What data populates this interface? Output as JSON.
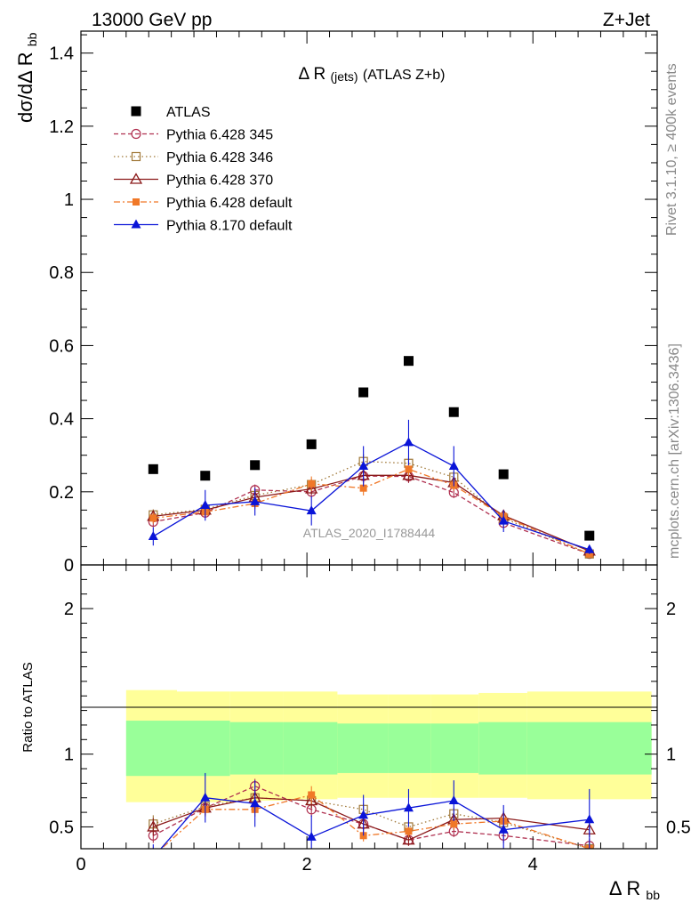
{
  "header": {
    "left": "13000 GeV pp",
    "right": "Z+Jet"
  },
  "side": {
    "rivet": "Rivet 3.1.10, ≥ 400k events",
    "mcplots": "mcplots.cern.ch [arXiv:1306.3436]"
  },
  "chart_data": [
    {
      "type": "scatter",
      "title": "Δ R (jets) (ATLAS Z+b)",
      "title_main": "Δ R",
      "title_small": "(jets)",
      "title_rest": "(ATLAS Z+b)",
      "ylabel": "dσ/dΔ R",
      "ylabel_sub": "bb",
      "watermark": "ATLAS_2020_I1788444",
      "xlim": [
        0,
        5.1
      ],
      "ylim": [
        0,
        1.46
      ],
      "yticks": [
        0,
        0.2,
        0.4,
        0.6,
        0.8,
        1,
        1.2,
        1.4
      ],
      "ytick_labels": [
        "0",
        "0.2",
        "0.4",
        "0.6",
        "0.8",
        "1",
        "1.2",
        "1.4"
      ],
      "legend_position": "top-left",
      "x": [
        0.64,
        1.1,
        1.54,
        2.04,
        2.5,
        2.9,
        3.3,
        3.74,
        4.5
      ],
      "series": [
        {
          "name": "ATLAS",
          "color": "#000000",
          "marker": "square",
          "line": "none",
          "values": [
            0.262,
            0.244,
            0.273,
            0.33,
            0.472,
            0.558,
            0.418,
            0.248,
            0.08
          ]
        },
        {
          "name": "Pythia 6.428 345",
          "color": "#b03050",
          "marker": "circle-open",
          "line": "dashed",
          "values": [
            0.118,
            0.143,
            0.205,
            0.2,
            0.243,
            0.242,
            0.198,
            0.115,
            0.03
          ],
          "errors": [
            0.015,
            0.012,
            0.015,
            0.015,
            0.02,
            0.018,
            0.015,
            0.012,
            0.005
          ]
        },
        {
          "name": "Pythia 6.428 346",
          "color": "#a07838",
          "marker": "square-open",
          "line": "dotted",
          "values": [
            0.137,
            0.152,
            0.19,
            0.22,
            0.283,
            0.278,
            0.24,
            0.128,
            0.03
          ],
          "errors": [
            0.015,
            0.012,
            0.015,
            0.015,
            0.02,
            0.018,
            0.015,
            0.012,
            0.005
          ]
        },
        {
          "name": "Pythia 6.428 370",
          "color": "#8b1a1a",
          "marker": "triangle-open",
          "line": "solid",
          "values": [
            0.133,
            0.15,
            0.185,
            0.208,
            0.245,
            0.245,
            0.225,
            0.135,
            0.038
          ],
          "errors": [
            0.015,
            0.012,
            0.015,
            0.015,
            0.02,
            0.018,
            0.015,
            0.012,
            0.005
          ]
        },
        {
          "name": "Pythia 6.428 default",
          "color": "#f07828",
          "marker": "square-filled",
          "line": "dashdot",
          "values": [
            0.128,
            0.145,
            0.168,
            0.222,
            0.21,
            0.262,
            0.218,
            0.133,
            0.03
          ],
          "errors": [
            0.015,
            0.012,
            0.015,
            0.02,
            0.02,
            0.018,
            0.015,
            0.012,
            0.005
          ]
        },
        {
          "name": "Pythia 8.170 default",
          "color": "#0a14d8",
          "marker": "triangle-filled",
          "line": "solid",
          "values": [
            0.078,
            0.163,
            0.173,
            0.148,
            0.27,
            0.335,
            0.27,
            0.12,
            0.042
          ],
          "errors": [
            0.025,
            0.042,
            0.038,
            0.04,
            0.055,
            0.062,
            0.055,
            0.03,
            0.012
          ]
        }
      ]
    },
    {
      "type": "scatter",
      "title": "",
      "ylabel": "Ratio to ATLAS",
      "xlabel": "Δ R",
      "xlabel_sub": "bb",
      "xlim": [
        0,
        5.1
      ],
      "ylim": [
        0.35,
        2.3
      ],
      "xticks": [
        0,
        2,
        4
      ],
      "xtick_labels": [
        "0",
        "2",
        "4"
      ],
      "yticks": [
        0.5,
        1,
        2
      ],
      "ytick_labels": [
        "0.5",
        "1",
        "2"
      ],
      "bands": {
        "x_edges": [
          0.4,
          0.85,
          1.32,
          1.79,
          2.27,
          2.72,
          3.1,
          3.52,
          3.95,
          5.05
        ],
        "inner_low": [
          0.85,
          0.85,
          0.86,
          0.86,
          0.87,
          0.87,
          0.87,
          0.86,
          0.86
        ],
        "inner_high": [
          1.23,
          1.23,
          1.22,
          1.22,
          1.21,
          1.21,
          1.21,
          1.22,
          1.22
        ],
        "outer_low": [
          0.67,
          0.67,
          0.68,
          0.69,
          0.7,
          0.7,
          0.7,
          0.7,
          0.69
        ],
        "outer_high": [
          1.44,
          1.43,
          1.43,
          1.43,
          1.41,
          1.41,
          1.41,
          1.42,
          1.43
        ],
        "inner_color": "#99ff99",
        "outer_color": "#ffff99"
      },
      "x": [
        0.64,
        1.1,
        1.54,
        2.04,
        2.5,
        2.9,
        3.3,
        3.74,
        4.5
      ],
      "series": [
        {
          "name": "Pythia 6.428 345",
          "color": "#b03050",
          "marker": "circle-open",
          "line": "dashed",
          "values": [
            0.44,
            0.63,
            0.78,
            0.62,
            0.52,
            0.41,
            0.47,
            0.44,
            0.37
          ],
          "errors": [
            0.05,
            0.05,
            0.05,
            0.05,
            0.04,
            0.04,
            0.04,
            0.05,
            0.05
          ]
        },
        {
          "name": "Pythia 6.428 346",
          "color": "#a07838",
          "marker": "square-open",
          "line": "dotted",
          "values": [
            0.52,
            0.64,
            0.7,
            0.68,
            0.62,
            0.5,
            0.59,
            0.53,
            0.35
          ],
          "errors": [
            0.06,
            0.05,
            0.05,
            0.05,
            0.04,
            0.04,
            0.04,
            0.05,
            0.05
          ]
        },
        {
          "name": "Pythia 6.428 370",
          "color": "#8b1a1a",
          "marker": "triangle-open",
          "line": "solid",
          "values": [
            0.5,
            0.63,
            0.7,
            0.68,
            0.52,
            0.41,
            0.55,
            0.56,
            0.48
          ],
          "errors": [
            0.06,
            0.05,
            0.05,
            0.05,
            0.04,
            0.04,
            0.04,
            0.05,
            0.05
          ]
        },
        {
          "name": "Pythia 6.428 default",
          "color": "#f07828",
          "marker": "square-filled",
          "line": "dashdot",
          "values": [
            0.3,
            0.62,
            0.62,
            0.72,
            0.44,
            0.47,
            0.52,
            0.54,
            0.35
          ],
          "errors": [
            0.06,
            0.05,
            0.05,
            0.06,
            0.04,
            0.04,
            0.04,
            0.05,
            0.05
          ]
        },
        {
          "name": "Pythia 8.170 default",
          "color": "#0a14d8",
          "marker": "triangle-filled",
          "line": "solid",
          "values": [
            0.29,
            0.7,
            0.66,
            0.43,
            0.58,
            0.63,
            0.68,
            0.48,
            0.55
          ],
          "errors": [
            0.09,
            0.17,
            0.16,
            0.15,
            0.14,
            0.13,
            0.14,
            0.17,
            0.21
          ]
        }
      ]
    }
  ]
}
